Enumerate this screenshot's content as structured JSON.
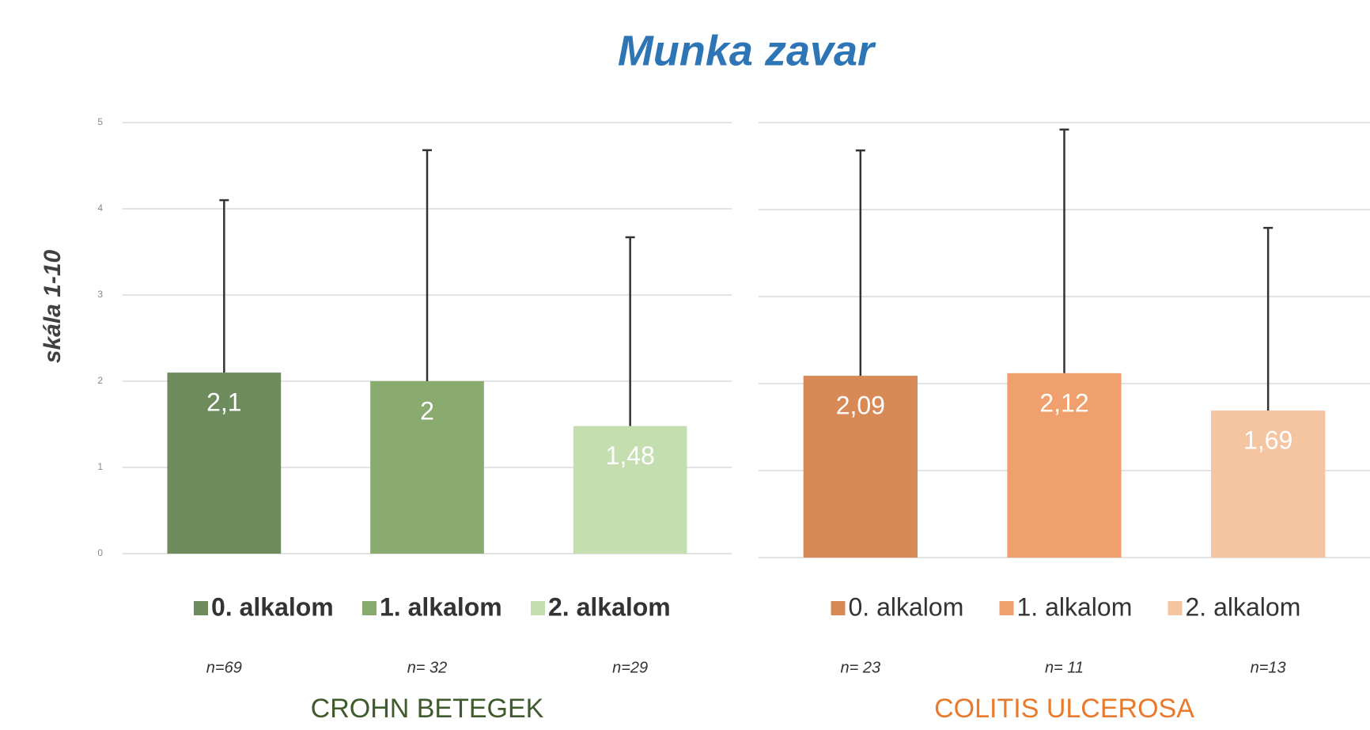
{
  "title": "Munka zavar",
  "chart_data": [
    {
      "type": "bar",
      "ylabel": "skála 1-10",
      "xlabel": "CROHN BETEGEK",
      "xlabel_color": "#3f5a2c",
      "categories": [
        "0. alkalom",
        "1. alkalom",
        "2. alkalom"
      ],
      "colors": [
        "#6e8b5e",
        "#8aab6f",
        "#c5deb0"
      ],
      "values": [
        2.1,
        2,
        1.48
      ],
      "value_labels": [
        "2,1",
        "2",
        "1,48"
      ],
      "errors": [
        2.0,
        2.68,
        2.19
      ],
      "sample_sizes": [
        "n=69",
        "n= 32",
        "n=29"
      ],
      "ylim": [
        0,
        5
      ],
      "yticks": [
        0,
        1,
        2,
        3,
        4,
        5
      ],
      "tick_labels": true,
      "grid": true
    },
    {
      "type": "bar",
      "xlabel": "COLITIS ULCEROSA",
      "xlabel_color": "#e97a2c",
      "categories": [
        "0. alkalom",
        "1. alkalom",
        "2. alkalom"
      ],
      "colors": [
        "#d78a56",
        "#f0a06c",
        "#f5c4a1"
      ],
      "values": [
        2.09,
        2.12,
        1.69
      ],
      "value_labels": [
        "2,09",
        "2,12",
        "1,69"
      ],
      "errors": [
        2.59,
        2.8,
        2.1
      ],
      "sample_sizes": [
        "n= 23",
        "n= 11",
        "n=13"
      ],
      "ylim": [
        0,
        5
      ],
      "yticks": [
        0,
        1,
        2,
        3,
        4,
        5
      ],
      "tick_labels": false,
      "grid": true
    }
  ]
}
